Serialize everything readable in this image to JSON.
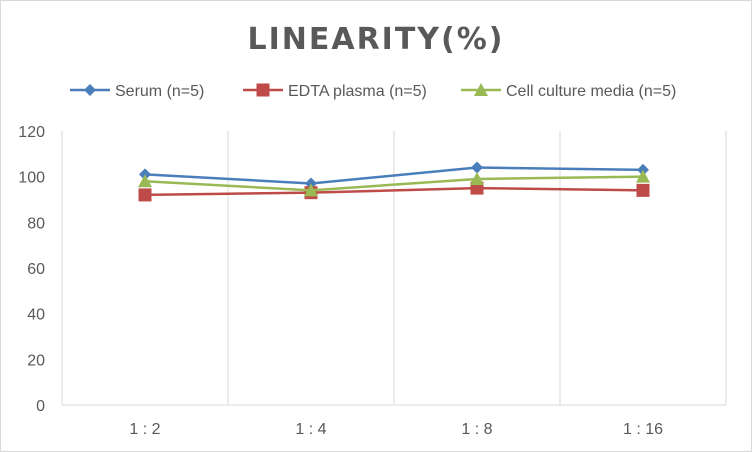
{
  "chart_data": {
    "type": "line",
    "title": "LINEARITY(%)",
    "xlabel": "",
    "ylabel": "",
    "categories": [
      "1:2",
      "1:4",
      "1:8",
      "1:16"
    ],
    "ylim": [
      0,
      120
    ],
    "yticks": [
      0,
      20,
      40,
      60,
      80,
      100,
      120
    ],
    "grid": "vertical",
    "legend_position": "top",
    "series": [
      {
        "name": "Serum (n=5)",
        "color": "#4a7ebb",
        "marker": "diamond",
        "values": [
          101,
          97,
          104,
          103
        ]
      },
      {
        "name": "EDTA plasma (n=5)",
        "color": "#be4b48",
        "marker": "square",
        "values": [
          92,
          93,
          95,
          94
        ]
      },
      {
        "name": "Cell culture media (n=5)",
        "color": "#98b954",
        "marker": "triangle",
        "values": [
          98,
          94,
          99,
          100
        ]
      }
    ]
  }
}
